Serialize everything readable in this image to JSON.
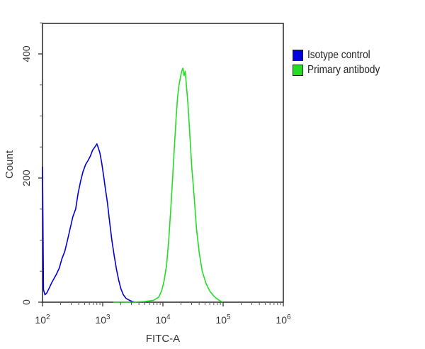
{
  "chart_data": {
    "type": "line",
    "subtype": "flow-cytometry-histogram",
    "title": "",
    "xlabel": "FITC-A",
    "ylabel": "Count",
    "xscale": "log",
    "xlim": [
      100,
      1000000
    ],
    "ylim": [
      0,
      450
    ],
    "x_ticks": [
      {
        "value": 100,
        "base": "10",
        "exp": "2"
      },
      {
        "value": 1000,
        "base": "10",
        "exp": "3"
      },
      {
        "value": 10000,
        "base": "10",
        "exp": "4"
      },
      {
        "value": 100000,
        "base": "10",
        "exp": "5"
      },
      {
        "value": 1000000,
        "base": "10",
        "exp": "6"
      }
    ],
    "y_ticks": [
      0,
      200,
      400
    ],
    "y_minor_ticks": [
      50,
      100,
      150,
      250,
      300,
      350,
      450
    ],
    "grid": false,
    "legend_position": "right",
    "series": [
      {
        "name": "Isotype control",
        "color": "#0000dd",
        "points": [
          [
            100,
            218
          ],
          [
            104,
            20
          ],
          [
            110,
            12
          ],
          [
            118,
            15
          ],
          [
            128,
            22
          ],
          [
            140,
            30
          ],
          [
            155,
            38
          ],
          [
            170,
            45
          ],
          [
            190,
            55
          ],
          [
            210,
            70
          ],
          [
            235,
            82
          ],
          [
            260,
            100
          ],
          [
            290,
            120
          ],
          [
            320,
            138
          ],
          [
            355,
            150
          ],
          [
            390,
            175
          ],
          [
            430,
            195
          ],
          [
            470,
            210
          ],
          [
            520,
            222
          ],
          [
            570,
            228
          ],
          [
            620,
            235
          ],
          [
            680,
            245
          ],
          [
            740,
            250
          ],
          [
            800,
            255
          ],
          [
            850,
            248
          ],
          [
            900,
            240
          ],
          [
            960,
            225
          ],
          [
            1030,
            205
          ],
          [
            1100,
            185
          ],
          [
            1200,
            160
          ],
          [
            1300,
            130
          ],
          [
            1420,
            100
          ],
          [
            1550,
            75
          ],
          [
            1700,
            52
          ],
          [
            1850,
            35
          ],
          [
            2000,
            22
          ],
          [
            2200,
            12
          ],
          [
            2450,
            6
          ],
          [
            2800,
            3
          ],
          [
            3100,
            1
          ],
          [
            3500,
            0
          ]
        ],
        "peak": {
          "x": 830,
          "count": 255
        }
      },
      {
        "name": "Primary antibody",
        "color": "#22dd22",
        "points": [
          [
            1500,
            0
          ],
          [
            3000,
            0
          ],
          [
            5000,
            1
          ],
          [
            7000,
            3
          ],
          [
            8500,
            8
          ],
          [
            9500,
            18
          ],
          [
            10500,
            35
          ],
          [
            11500,
            60
          ],
          [
            12500,
            100
          ],
          [
            13500,
            150
          ],
          [
            14500,
            200
          ],
          [
            15500,
            250
          ],
          [
            16500,
            295
          ],
          [
            17500,
            330
          ],
          [
            18500,
            350
          ],
          [
            19500,
            362
          ],
          [
            20500,
            372
          ],
          [
            21500,
            377
          ],
          [
            22500,
            365
          ],
          [
            23500,
            372
          ],
          [
            24500,
            350
          ],
          [
            26000,
            320
          ],
          [
            28000,
            270
          ],
          [
            30000,
            220
          ],
          [
            33000,
            170
          ],
          [
            36000,
            120
          ],
          [
            40000,
            80
          ],
          [
            45000,
            50
          ],
          [
            52000,
            30
          ],
          [
            60000,
            18
          ],
          [
            70000,
            10
          ],
          [
            80000,
            5
          ],
          [
            90000,
            2
          ],
          [
            100000,
            0
          ]
        ],
        "peak": {
          "x": 22000,
          "count": 377
        }
      }
    ]
  },
  "legend": {
    "items": [
      {
        "label": "Isotype control",
        "color": "#0000dd"
      },
      {
        "label": "Primary antibody",
        "color": "#22dd22"
      }
    ]
  }
}
